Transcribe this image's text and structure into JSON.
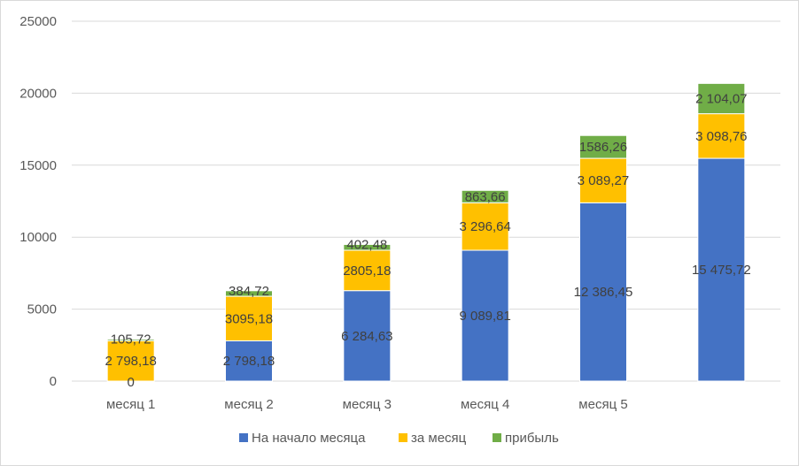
{
  "chart_data": {
    "type": "bar",
    "stacked": true,
    "categories": [
      "месяц 1",
      "месяц 2",
      "месяц 3",
      "месяц 4",
      "месяц 5",
      ""
    ],
    "series": [
      {
        "name": "На начало месяца",
        "color": "#4472C4",
        "values": [
          0,
          2798.18,
          6284.63,
          9089.81,
          12386.45,
          15475.72
        ],
        "labels": [
          "0",
          "2 798,18",
          "6 284,63",
          "9 089,81",
          "12 386,45",
          "15 475,72"
        ]
      },
      {
        "name": "за месяц",
        "color": "#FFC000",
        "values": [
          2798.18,
          3095.18,
          2805.18,
          3296.64,
          3089.27,
          3098.76
        ],
        "labels": [
          "2 798,18",
          "3095,18",
          "2805,18",
          "3 296,64",
          "3 089,27",
          "3 098,76"
        ]
      },
      {
        "name": "прибыль",
        "color": "#70AD47",
        "values": [
          105.72,
          384.72,
          402.48,
          863.66,
          1586.26,
          2104.07
        ],
        "labels": [
          "105,72",
          "384,72",
          "402,48",
          "863,66",
          "1586,26",
          "2 104,07"
        ]
      }
    ],
    "y_ticks": [
      "0",
      "5000",
      "10000",
      "15000",
      "20000",
      "25000"
    ],
    "ylim": [
      0,
      25000
    ],
    "grid": true,
    "legend_position": "bottom"
  }
}
